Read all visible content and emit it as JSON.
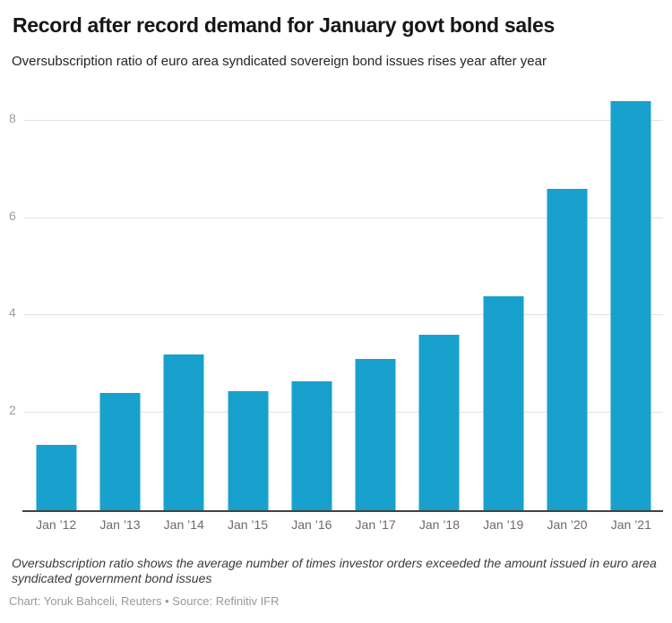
{
  "header": {
    "title": "Record after record demand for January govt bond sales",
    "subtitle": "Oversubscription ratio of euro area syndicated sovereign bond issues rises year after year"
  },
  "chart_data": {
    "type": "bar",
    "title": "Record after record demand for January govt bond sales",
    "subtitle": "Oversubscription ratio of euro area syndicated sovereign bond issues rises year after year",
    "categories": [
      "Jan ’12",
      "Jan ’13",
      "Jan ’14",
      "Jan ’15",
      "Jan ’16",
      "Jan ’17",
      "Jan ’18",
      "Jan ’19",
      "Jan ’20",
      "Jan ’21"
    ],
    "values": [
      1.35,
      2.4,
      3.2,
      2.45,
      2.65,
      3.1,
      3.6,
      4.4,
      6.6,
      8.4
    ],
    "xlabel": "",
    "ylabel": "",
    "yticks": [
      2,
      4,
      6,
      8
    ],
    "ylim": [
      0,
      8.64
    ],
    "grid": true,
    "legend": "none",
    "bar_color": "#18a1cd",
    "gridline_color": "#e2e2e2",
    "axis_color": "#424242"
  },
  "footer": {
    "note": "Oversubscription ratio shows the average number of times investor orders exceeded the amount issued in euro area syndicated government bond issues",
    "credit": "Chart: Yoruk Bahceli, Reuters • Source: Refinitiv IFR"
  }
}
